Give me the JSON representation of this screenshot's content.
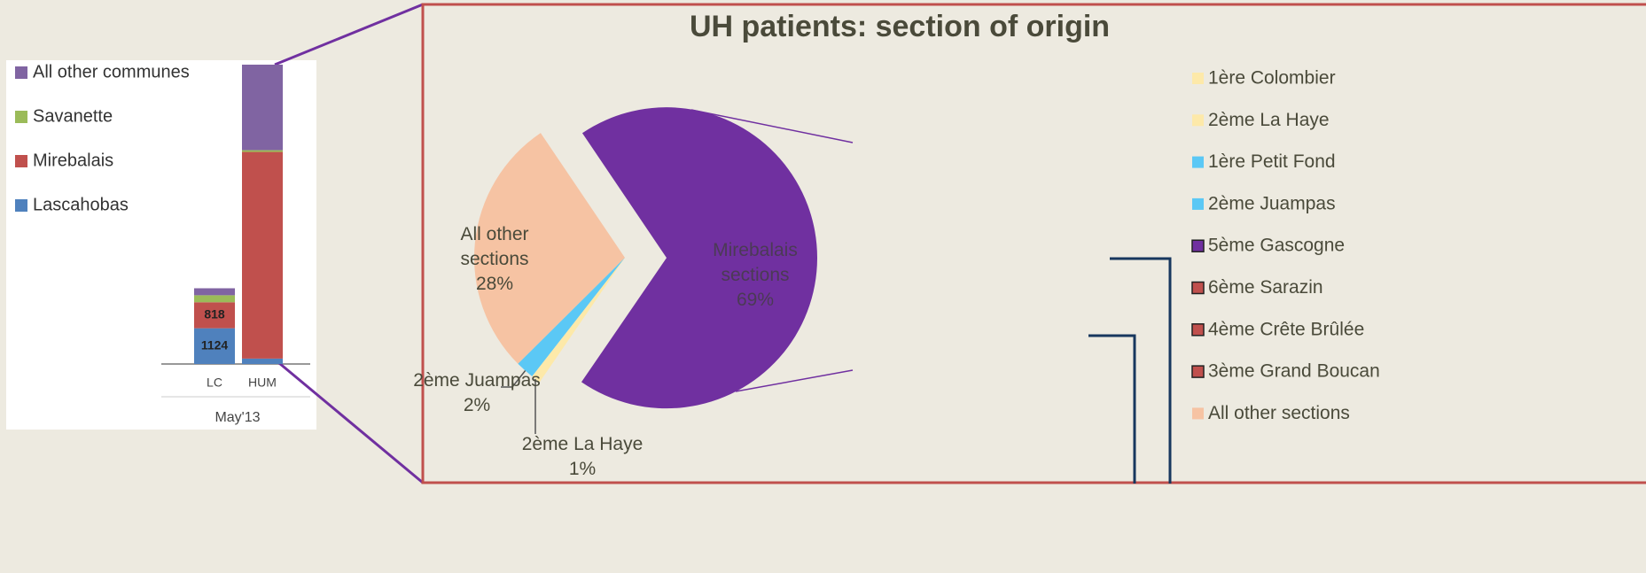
{
  "chart_data": [
    {
      "type": "stacked-bar",
      "categories": [
        "LC",
        "HUM"
      ],
      "group_label": "May'13",
      "series": [
        {
          "name": "Lascahobas",
          "color": "#4f81bd",
          "values": [
            1124,
            170
          ],
          "value_labels": [
            "1124",
            null
          ]
        },
        {
          "name": "Mirebalais",
          "color": "#c0504d",
          "values": [
            818,
            6500
          ],
          "value_labels": [
            "818",
            null
          ]
        },
        {
          "name": "Savanette",
          "color": "#9bbb59",
          "values": [
            220,
            55
          ]
        },
        {
          "name": "All other communes",
          "color": "#8064a2",
          "values": [
            220,
            2690
          ]
        }
      ]
    },
    {
      "type": "pie",
      "title": "UH patients: section of origin",
      "categories": [
        "All other sections",
        "2ème Juampas",
        "2ème La Haye",
        "Mirebalais sections"
      ],
      "values": [
        28,
        2,
        1,
        69
      ],
      "value_labels": [
        "28%",
        "2%",
        "1%",
        "69%"
      ],
      "colors": [
        "#f6c3a3",
        "#5bc8f5",
        "#fde9a9",
        "#7030a0"
      ],
      "legend": [
        {
          "name": "1ère Colombier",
          "color": "#fde9a9"
        },
        {
          "name": "2ème La Haye",
          "color": "#fde9a9"
        },
        {
          "name": "1ère Petit Fond",
          "color": "#5bc8f5"
        },
        {
          "name": "2ème Juampas",
          "color": "#5bc8f5"
        },
        {
          "name": "5ème Gascogne",
          "color": "#7030a0"
        },
        {
          "name": "6ème Sarazin",
          "color": "#c0504d"
        },
        {
          "name": "4ème Crête Brûlée",
          "color": "#c0504d"
        },
        {
          "name": "3ème Grand Boucan",
          "color": "#c0504d"
        },
        {
          "name": "All other sections",
          "color": "#f6c3a3"
        }
      ]
    }
  ]
}
